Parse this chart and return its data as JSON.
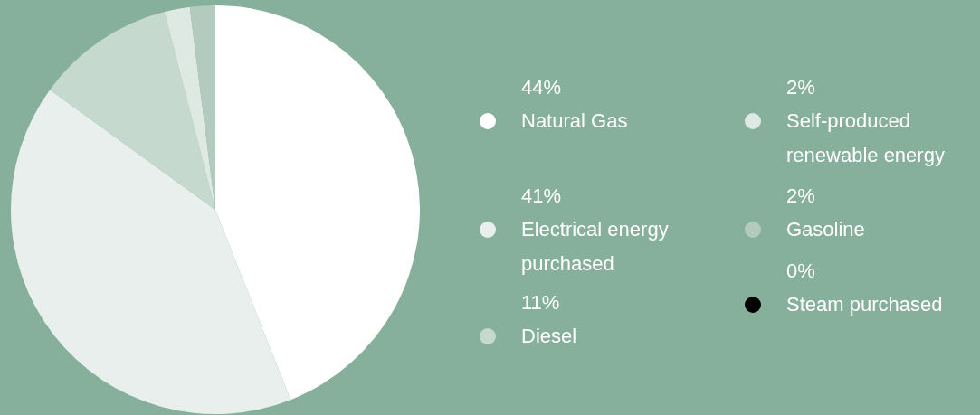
{
  "chart_data": {
    "type": "pie",
    "categories": [
      "Natural Gas",
      "Electrical energy purchased",
      "Diesel",
      "Self-produced renewable energy",
      "Gasoline",
      "Steam purchased"
    ],
    "values": [
      44,
      41,
      11,
      2,
      2,
      0
    ],
    "value_labels": [
      "44%",
      "41%",
      "11%",
      "2%",
      "2%",
      "0%"
    ],
    "colors": [
      "#ffffff",
      "#e8efec",
      "#c6d9cf",
      "#dfe9e4",
      "#b3cbbf",
      "#000000"
    ],
    "legend": "right"
  }
}
